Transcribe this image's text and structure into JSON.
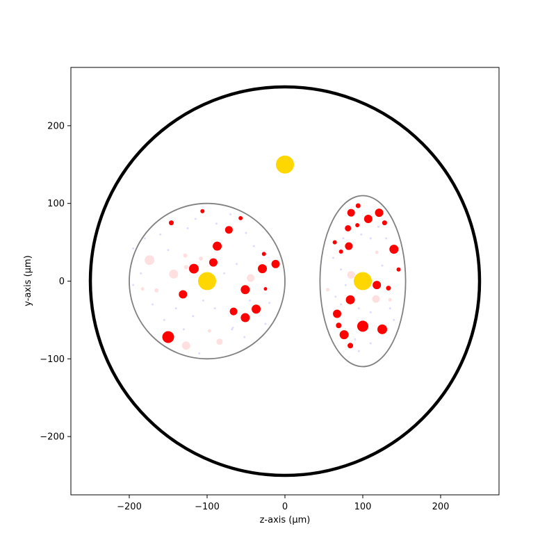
{
  "chart_data": {
    "type": "scatter",
    "title": "",
    "xlabel": "z-axis (μm)",
    "ylabel": "y-axis (μm)",
    "xlim": [
      -275,
      275
    ],
    "ylim": [
      -275,
      275
    ],
    "xticks": [
      -200,
      -100,
      0,
      100,
      200
    ],
    "yticks": [
      -200,
      -100,
      0,
      100,
      200
    ],
    "tick_labels": {
      "x": [
        "−200",
        "−100",
        "0",
        "100",
        "200"
      ],
      "y": [
        "−200",
        "−100",
        "0",
        "100",
        "200"
      ]
    },
    "grid": false,
    "colors": {
      "outer": "#000000",
      "inner": "#808080",
      "nucleus": "#ffd700",
      "red": "#ff0000",
      "faint_red": "#ffd6d6",
      "faint_blue": "#d8d8ff"
    },
    "boundaries": [
      {
        "name": "outer-circle",
        "cx": 0,
        "cy": 0,
        "rx": 250,
        "ry": 250
      },
      {
        "name": "left-circle",
        "cx": -100,
        "cy": 0,
        "rx": 100,
        "ry": 100
      },
      {
        "name": "right-ellipse",
        "cx": 100,
        "cy": 0,
        "rx": 55,
        "ry": 110
      }
    ],
    "nuclei": [
      {
        "x": 0,
        "y": 150,
        "r": 13
      },
      {
        "x": -100,
        "y": 0,
        "r": 13
      },
      {
        "x": 100,
        "y": 0,
        "r": 13
      }
    ],
    "red_points": [
      {
        "x": -146,
        "y": 75,
        "r": 3.5
      },
      {
        "x": -106,
        "y": 90,
        "r": 3
      },
      {
        "x": -72,
        "y": 66,
        "r": 5.5
      },
      {
        "x": -57,
        "y": 81,
        "r": 3
      },
      {
        "x": -87,
        "y": 45,
        "r": 6.5
      },
      {
        "x": -92,
        "y": 24,
        "r": 6
      },
      {
        "x": -117,
        "y": 16,
        "r": 7
      },
      {
        "x": -27,
        "y": 35,
        "r": 3
      },
      {
        "x": -12,
        "y": 22,
        "r": 6
      },
      {
        "x": -29,
        "y": 16,
        "r": 6.5
      },
      {
        "x": -25,
        "y": -10,
        "r": 2.5
      },
      {
        "x": -51,
        "y": -11,
        "r": 6.5
      },
      {
        "x": -131,
        "y": -17,
        "r": 6
      },
      {
        "x": -66,
        "y": -39,
        "r": 5.5
      },
      {
        "x": -37,
        "y": -36,
        "r": 6.5
      },
      {
        "x": -51,
        "y": -47,
        "r": 6.5
      },
      {
        "x": -150,
        "y": -72,
        "r": 8.5
      },
      {
        "x": 85,
        "y": 88,
        "r": 5.5
      },
      {
        "x": 94,
        "y": 97,
        "r": 3.5
      },
      {
        "x": 121,
        "y": 88,
        "r": 6
      },
      {
        "x": 107,
        "y": 80,
        "r": 6
      },
      {
        "x": 128,
        "y": 75,
        "r": 3.5
      },
      {
        "x": 81,
        "y": 68,
        "r": 4.5
      },
      {
        "x": 93,
        "y": 72,
        "r": 3
      },
      {
        "x": 64,
        "y": 50,
        "r": 3
      },
      {
        "x": 82,
        "y": 45,
        "r": 5.5
      },
      {
        "x": 72,
        "y": 38,
        "r": 3
      },
      {
        "x": 140,
        "y": 41,
        "r": 6.5
      },
      {
        "x": 146,
        "y": 15,
        "r": 3
      },
      {
        "x": 118,
        "y": -5,
        "r": 6
      },
      {
        "x": 133,
        "y": -9,
        "r": 3.5
      },
      {
        "x": 84,
        "y": -24,
        "r": 6.5
      },
      {
        "x": 67,
        "y": -42,
        "r": 6
      },
      {
        "x": 69,
        "y": -57,
        "r": 4
      },
      {
        "x": 100,
        "y": -58,
        "r": 8
      },
      {
        "x": 125,
        "y": -62,
        "r": 7
      },
      {
        "x": 76,
        "y": -69,
        "r": 6.5
      },
      {
        "x": 84,
        "y": -83,
        "r": 4
      }
    ],
    "faint_points": [
      {
        "x": -174,
        "y": 27,
        "r": 7,
        "c": "red"
      },
      {
        "x": -143,
        "y": 9,
        "r": 6.5,
        "c": "red"
      },
      {
        "x": -128,
        "y": 33,
        "r": 3,
        "c": "red"
      },
      {
        "x": -127,
        "y": 18,
        "r": 3,
        "c": "red"
      },
      {
        "x": -108,
        "y": 29,
        "r": 3,
        "c": "red"
      },
      {
        "x": -44,
        "y": 4,
        "r": 5.5,
        "c": "red"
      },
      {
        "x": -165,
        "y": -12,
        "r": 3,
        "c": "red"
      },
      {
        "x": -183,
        "y": -10,
        "r": 2.5,
        "c": "red"
      },
      {
        "x": -127,
        "y": -83,
        "r": 6,
        "c": "red"
      },
      {
        "x": -84,
        "y": -78,
        "r": 4.5,
        "c": "red"
      },
      {
        "x": -97,
        "y": -64,
        "r": 2.5,
        "c": "red"
      },
      {
        "x": 85,
        "y": 8,
        "r": 5.5,
        "c": "red"
      },
      {
        "x": 117,
        "y": -23,
        "r": 5.5,
        "c": "red"
      },
      {
        "x": 55,
        "y": -11,
        "r": 2.5,
        "c": "red"
      },
      {
        "x": 118,
        "y": 37,
        "r": 2.5,
        "c": "red"
      },
      {
        "x": 135,
        "y": -24,
        "r": 2.5,
        "c": "red"
      },
      {
        "x": -195,
        "y": 42,
        "r": 1.5,
        "c": "blue"
      },
      {
        "x": -180,
        "y": 55,
        "r": 1.5,
        "c": "blue"
      },
      {
        "x": -160,
        "y": 60,
        "r": 1.5,
        "c": "blue"
      },
      {
        "x": -125,
        "y": 68,
        "r": 1.5,
        "c": "blue"
      },
      {
        "x": -115,
        "y": 80,
        "r": 1.5,
        "c": "blue"
      },
      {
        "x": -88,
        "y": 74,
        "r": 1.5,
        "c": "blue"
      },
      {
        "x": -70,
        "y": 86,
        "r": 1.5,
        "c": "blue"
      },
      {
        "x": -50,
        "y": 62,
        "r": 1.5,
        "c": "blue"
      },
      {
        "x": -40,
        "y": 45,
        "r": 1.5,
        "c": "blue"
      },
      {
        "x": -62,
        "y": 22,
        "r": 1.5,
        "c": "blue"
      },
      {
        "x": -78,
        "y": 10,
        "r": 1.5,
        "c": "blue"
      },
      {
        "x": -150,
        "y": 40,
        "r": 1.5,
        "c": "blue"
      },
      {
        "x": -170,
        "y": -30,
        "r": 1.5,
        "c": "blue"
      },
      {
        "x": -155,
        "y": -50,
        "r": 1.5,
        "c": "blue"
      },
      {
        "x": -140,
        "y": -35,
        "r": 1.5,
        "c": "blue"
      },
      {
        "x": -118,
        "y": -45,
        "r": 1.5,
        "c": "blue"
      },
      {
        "x": -105,
        "y": -25,
        "r": 1.5,
        "c": "blue"
      },
      {
        "x": -90,
        "y": -35,
        "r": 1.5,
        "c": "blue"
      },
      {
        "x": -68,
        "y": -62,
        "r": 1.5,
        "c": "blue"
      },
      {
        "x": -67,
        "y": -60,
        "r": 1.5,
        "c": "blue"
      },
      {
        "x": -52,
        "y": -72,
        "r": 1.5,
        "c": "blue"
      },
      {
        "x": -45,
        "y": -25,
        "r": 1.5,
        "c": "blue"
      },
      {
        "x": -25,
        "y": -55,
        "r": 1.5,
        "c": "blue"
      },
      {
        "x": -20,
        "y": -28,
        "r": 1.5,
        "c": "blue"
      },
      {
        "x": -110,
        "y": -93,
        "r": 1.5,
        "c": "blue"
      },
      {
        "x": -130,
        "y": -62,
        "r": 1.5,
        "c": "blue"
      },
      {
        "x": -185,
        "y": 10,
        "r": 1.5,
        "c": "blue"
      },
      {
        "x": -195,
        "y": -5,
        "r": 1.5,
        "c": "blue"
      },
      {
        "x": 62,
        "y": 30,
        "r": 1.5,
        "c": "blue"
      },
      {
        "x": 72,
        "y": 15,
        "r": 1.5,
        "c": "blue"
      },
      {
        "x": 78,
        "y": -5,
        "r": 1.5,
        "c": "blue"
      },
      {
        "x": 65,
        "y": -20,
        "r": 1.5,
        "c": "blue"
      },
      {
        "x": 72,
        "y": -30,
        "r": 1.5,
        "c": "blue"
      },
      {
        "x": 95,
        "y": -35,
        "r": 1.5,
        "c": "blue"
      },
      {
        "x": 110,
        "y": -40,
        "r": 1.5,
        "c": "blue"
      },
      {
        "x": 135,
        "y": -35,
        "r": 1.5,
        "c": "blue"
      },
      {
        "x": 140,
        "y": -50,
        "r": 1.5,
        "c": "blue"
      },
      {
        "x": 125,
        "y": 20,
        "r": 1.5,
        "c": "blue"
      },
      {
        "x": 110,
        "y": 55,
        "r": 1.5,
        "c": "blue"
      },
      {
        "x": 98,
        "y": 60,
        "r": 1.5,
        "c": "blue"
      },
      {
        "x": 130,
        "y": 55,
        "r": 1.5,
        "c": "blue"
      },
      {
        "x": 75,
        "y": 55,
        "r": 1.5,
        "c": "blue"
      },
      {
        "x": 90,
        "y": -75,
        "r": 1.5,
        "c": "blue"
      },
      {
        "x": 110,
        "y": -80,
        "r": 1.5,
        "c": "blue"
      },
      {
        "x": 95,
        "y": -90,
        "r": 1.5,
        "c": "blue"
      },
      {
        "x": 120,
        "y": 70,
        "r": 1.5,
        "c": "blue"
      }
    ]
  }
}
